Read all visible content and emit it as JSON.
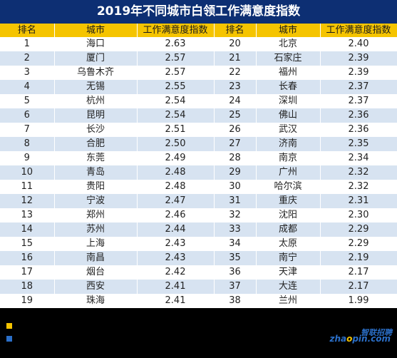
{
  "title": "2019年不同城市白领工作满意度指数",
  "headers": [
    "排名",
    "城市",
    "工作满意度指数",
    "排名",
    "城市",
    "工作满意度指数"
  ],
  "logo": {
    "cn": "智联招聘",
    "en_pre": "zha",
    "en_dot": "o",
    "en_post": "pin.com"
  },
  "chart_data": {
    "type": "table",
    "title": "2019年不同城市白领工作满意度指数",
    "columns": [
      "排名",
      "城市",
      "工作满意度指数"
    ],
    "rows": [
      {
        "rank": "1",
        "city": "海口",
        "index": "2.63"
      },
      {
        "rank": "2",
        "city": "厦门",
        "index": "2.57"
      },
      {
        "rank": "3",
        "city": "乌鲁木齐",
        "index": "2.57"
      },
      {
        "rank": "4",
        "city": "无锡",
        "index": "2.55"
      },
      {
        "rank": "5",
        "city": "杭州",
        "index": "2.54"
      },
      {
        "rank": "6",
        "city": "昆明",
        "index": "2.54"
      },
      {
        "rank": "7",
        "city": "长沙",
        "index": "2.51"
      },
      {
        "rank": "8",
        "city": "合肥",
        "index": "2.50"
      },
      {
        "rank": "9",
        "city": "东莞",
        "index": "2.49"
      },
      {
        "rank": "10",
        "city": "青岛",
        "index": "2.48"
      },
      {
        "rank": "11",
        "city": "贵阳",
        "index": "2.48"
      },
      {
        "rank": "12",
        "city": "宁波",
        "index": "2.47"
      },
      {
        "rank": "13",
        "city": "郑州",
        "index": "2.46"
      },
      {
        "rank": "14",
        "city": "苏州",
        "index": "2.44"
      },
      {
        "rank": "15",
        "city": "上海",
        "index": "2.43"
      },
      {
        "rank": "16",
        "city": "南昌",
        "index": "2.43"
      },
      {
        "rank": "17",
        "city": "烟台",
        "index": "2.42"
      },
      {
        "rank": "18",
        "city": "西安",
        "index": "2.41"
      },
      {
        "rank": "19",
        "city": "珠海",
        "index": "2.41"
      },
      {
        "rank": "20",
        "city": "北京",
        "index": "2.40"
      },
      {
        "rank": "21",
        "city": "石家庄",
        "index": "2.39"
      },
      {
        "rank": "22",
        "city": "福州",
        "index": "2.39"
      },
      {
        "rank": "23",
        "city": "长春",
        "index": "2.37"
      },
      {
        "rank": "24",
        "city": "深圳",
        "index": "2.37"
      },
      {
        "rank": "25",
        "city": "佛山",
        "index": "2.36"
      },
      {
        "rank": "26",
        "city": "武汉",
        "index": "2.36"
      },
      {
        "rank": "27",
        "city": "济南",
        "index": "2.35"
      },
      {
        "rank": "28",
        "city": "南京",
        "index": "2.34"
      },
      {
        "rank": "29",
        "city": "广州",
        "index": "2.32"
      },
      {
        "rank": "30",
        "city": "哈尔滨",
        "index": "2.32"
      },
      {
        "rank": "31",
        "city": "重庆",
        "index": "2.31"
      },
      {
        "rank": "32",
        "city": "沈阳",
        "index": "2.30"
      },
      {
        "rank": "33",
        "city": "成都",
        "index": "2.29"
      },
      {
        "rank": "34",
        "city": "太原",
        "index": "2.29"
      },
      {
        "rank": "35",
        "city": "南宁",
        "index": "2.19"
      },
      {
        "rank": "36",
        "city": "天津",
        "index": "2.17"
      },
      {
        "rank": "37",
        "city": "大连",
        "index": "2.17"
      },
      {
        "rank": "38",
        "city": "兰州",
        "index": "1.99"
      }
    ]
  },
  "colors": {
    "title_bg": "#0d2f73",
    "header_bg": "#f5c400",
    "row_alt": "#d7e3f1",
    "legend_1": "#f5c400",
    "legend_2": "#2b6fc8"
  }
}
